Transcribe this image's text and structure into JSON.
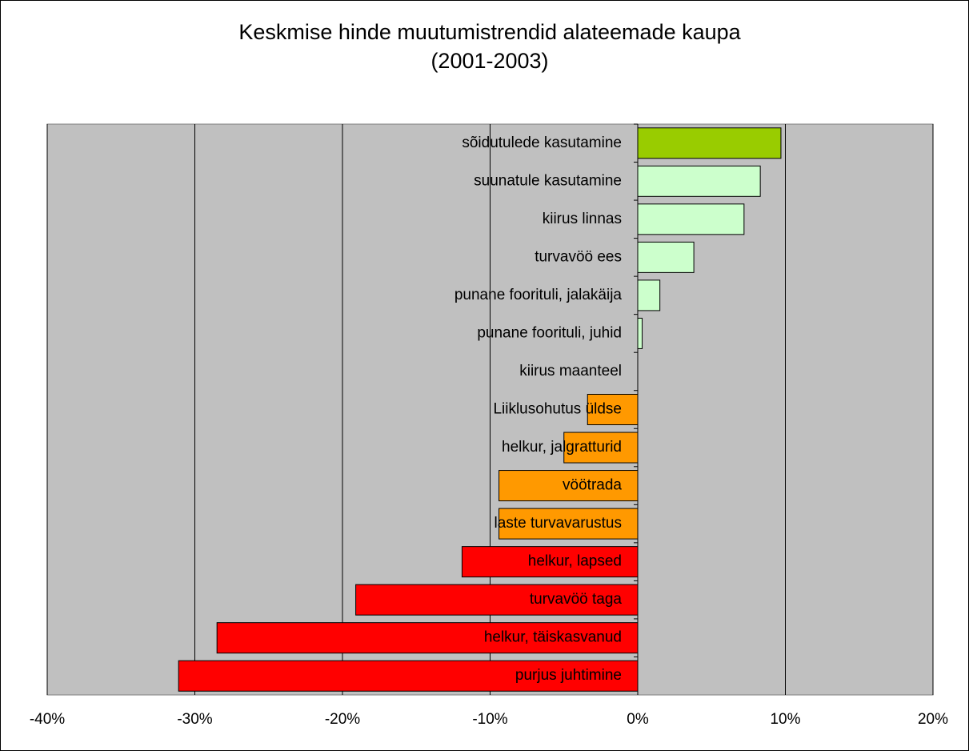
{
  "chart_data": {
    "type": "hbar",
    "title": "Keskmise hinde muutumistrendid alateemade kaupa",
    "subtitle": "(2001-2003)",
    "categories": [
      "sõidutulede kasutamine",
      "suunatule kasutamine",
      "kiirus linnas",
      "turvavöö ees",
      "punane foorituli, jalakäija",
      "punane foorituli, juhid",
      "kiirus maanteel",
      "Liiklusohutus üldse",
      "helkur, jalgratturid",
      "vöötrada",
      "laste turvavarustus",
      "helkur, lapsed",
      "turvavöö taga",
      "helkur, täiskasvanud",
      "purjus juhtimine"
    ],
    "values": [
      9.7,
      8.3,
      7.2,
      3.8,
      1.5,
      0.3,
      0,
      -3.4,
      -5.0,
      -9.4,
      -9.4,
      -11.9,
      -19.1,
      -28.5,
      -31.1
    ],
    "colors": [
      "#99cc00",
      "#ccffcc",
      "#ccffcc",
      "#ccffcc",
      "#ccffcc",
      "#ccffcc",
      "#ccffcc",
      "#ff9900",
      "#ff9900",
      "#ff9900",
      "#ff9900",
      "#ff0000",
      "#ff0000",
      "#ff0000",
      "#ff0000"
    ],
    "xlim": [
      -40,
      20
    ],
    "xticks": [
      {
        "value": -40,
        "label": "-40%"
      },
      {
        "value": -30,
        "label": "-30%"
      },
      {
        "value": -20,
        "label": "-20%"
      },
      {
        "value": -10,
        "label": "-10%"
      },
      {
        "value": 0,
        "label": "0%"
      },
      {
        "value": 10,
        "label": "10%"
      },
      {
        "value": 20,
        "label": "20%"
      }
    ],
    "grid": true
  }
}
